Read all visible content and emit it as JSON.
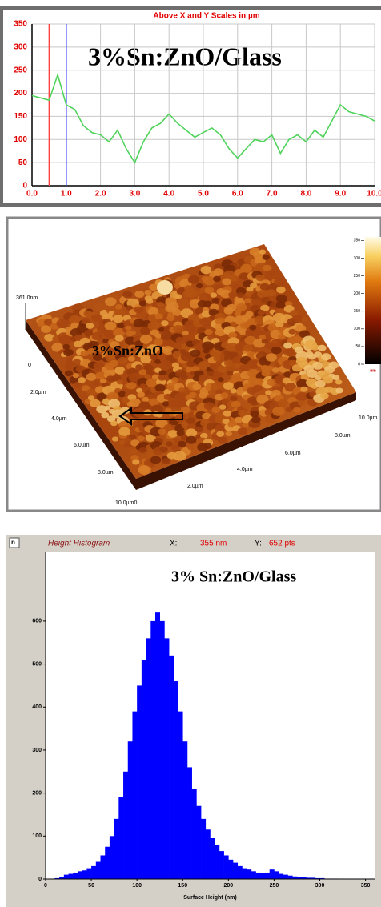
{
  "chart_data": [
    {
      "type": "line",
      "title": "Above X and Y Scales in µm",
      "annotation": "3%Sn:ZnO/Glass",
      "x": [
        0,
        0.25,
        0.5,
        0.75,
        1.0,
        1.25,
        1.5,
        1.75,
        2.0,
        2.25,
        2.5,
        2.75,
        3.0,
        3.25,
        3.5,
        3.75,
        4.0,
        4.25,
        4.5,
        4.75,
        5.0,
        5.25,
        5.5,
        5.75,
        6.0,
        6.25,
        6.5,
        6.75,
        7.0,
        7.25,
        7.5,
        7.75,
        8.0,
        8.25,
        8.5,
        8.75,
        9.0,
        9.25,
        9.5,
        9.75,
        10.0
      ],
      "series": [
        {
          "color": "#4fd35a",
          "values": [
            195,
            190,
            185,
            240,
            175,
            165,
            130,
            115,
            110,
            95,
            120,
            80,
            50,
            95,
            125,
            135,
            155,
            135,
            120,
            105,
            115,
            125,
            110,
            80,
            60,
            80,
            100,
            95,
            110,
            70,
            100,
            110,
            95,
            120,
            105,
            140,
            175,
            160,
            155,
            150,
            140
          ]
        }
      ],
      "cursors": [
        {
          "x": 0.5,
          "color": "#ff4040"
        },
        {
          "x": 1.0,
          "color": "#4040ff"
        }
      ],
      "xlim": [
        0,
        10
      ],
      "ylim": [
        0,
        350
      ],
      "xticks": [
        {
          "value": 0,
          "label": "0.0"
        },
        {
          "value": 1,
          "label": "1.0"
        },
        {
          "value": 2,
          "label": "2.0"
        },
        {
          "value": 3,
          "label": "3.0"
        },
        {
          "value": 4,
          "label": "4.0"
        },
        {
          "value": 5,
          "label": "5.0"
        },
        {
          "value": 6,
          "label": "6.0"
        },
        {
          "value": 7,
          "label": "7.0"
        },
        {
          "value": 8,
          "label": "8.0"
        },
        {
          "value": 9,
          "label": "9.0"
        },
        {
          "value": 10,
          "label": "10.0"
        }
      ],
      "yticks": [
        0,
        50,
        100,
        150,
        200,
        250,
        300,
        350
      ],
      "grid": true
    },
    {
      "type": "surface",
      "annotation": "3%Sn:ZnO",
      "z_label": "361.0nm",
      "z_origin": "0",
      "y_labels": [
        "2.0µm",
        "4.0µm",
        "6.0µm",
        "8.0µm",
        "10.0µm0"
      ],
      "x_labels": [
        "2.0µm",
        "4.0µm",
        "6.0µm",
        "8.0µm",
        "10.0µm"
      ],
      "colorbar_lim": [
        0,
        360
      ],
      "colorbar_ticks": [
        0,
        50,
        100,
        150,
        200,
        250,
        300,
        350
      ],
      "colorbar_unit": "nm"
    },
    {
      "type": "histogram",
      "title": "Height Histogram",
      "x_label_key": "X:",
      "x_readout": "355 nm",
      "y_label_key": "Y:",
      "y_readout": "652 pts",
      "annotation": "3% Sn:ZnO/Glass",
      "xlabel": "Surface Height (nm)",
      "color": "#0000ff",
      "bins": [
        0,
        5,
        10,
        15,
        20,
        25,
        30,
        35,
        40,
        45,
        50,
        55,
        60,
        65,
        70,
        75,
        80,
        85,
        90,
        95,
        100,
        105,
        110,
        115,
        120,
        125,
        130,
        135,
        140,
        145,
        150,
        155,
        160,
        165,
        170,
        175,
        180,
        185,
        190,
        195,
        200,
        205,
        210,
        215,
        220,
        225,
        230,
        235,
        240,
        245,
        250,
        255,
        260,
        265,
        270,
        275,
        280,
        285,
        290,
        295,
        300,
        305,
        310,
        315,
        320,
        325,
        330,
        335,
        340,
        345,
        350,
        355,
        360
      ],
      "counts": [
        0,
        0,
        2,
        5,
        10,
        12,
        15,
        18,
        20,
        25,
        30,
        40,
        55,
        75,
        100,
        140,
        190,
        250,
        320,
        390,
        450,
        510,
        560,
        600,
        620,
        600,
        560,
        520,
        460,
        390,
        320,
        260,
        210,
        170,
        140,
        115,
        95,
        80,
        65,
        55,
        45,
        38,
        30,
        25,
        22,
        18,
        15,
        14,
        15,
        22,
        18,
        12,
        10,
        8,
        6,
        5,
        4,
        3,
        3,
        2,
        2,
        1,
        1,
        1,
        0,
        0,
        0,
        0,
        0,
        0,
        0,
        0
      ],
      "xlim": [
        0,
        360
      ],
      "ylim": [
        0,
        760
      ],
      "xticks": [
        0,
        50,
        100,
        150,
        200,
        250,
        300,
        350
      ],
      "yticks": [
        0,
        100,
        200,
        300,
        400,
        500,
        600
      ]
    }
  ]
}
